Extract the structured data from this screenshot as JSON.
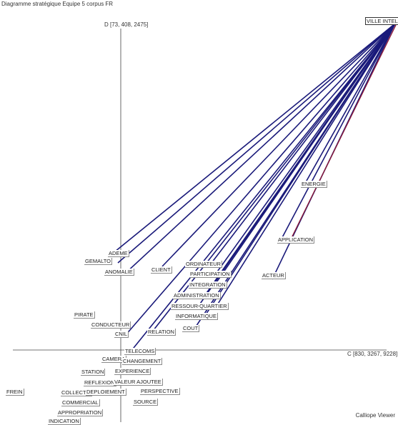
{
  "diagram": {
    "title": "Diagramme stratégique Equipe 5 corpus FR",
    "axis_d_label": "D [73, 408, 2475]",
    "axis_c_label": "C [830, 3267, 9228]",
    "footer": "Calliope Viewer",
    "colors": {
      "link": "#1a1a7a",
      "link_highlight": "#8b1a3a",
      "axis": "#444444"
    }
  },
  "terms": {
    "ville_intellige": "VILLE INTELLIGE",
    "energie": "ENERGIE",
    "application": "APPLICATION",
    "acteur": "ACTEUR",
    "ademe": "ADEME",
    "gemalto": "GEMALTO",
    "anomalie": "ANOMALIE",
    "client": "CLIENT",
    "ordinateur": "ORDINATEUR",
    "participation": "PARTICIPATION",
    "integration": "INTEGRATION",
    "administration": "ADMINISTRATION",
    "ressource": "RESSOURCE",
    "quartier": "QUARTIER",
    "informatique": "INFORMATIQUE",
    "cout": "COUT",
    "pirate": "PIRATE",
    "conducteur": "CONDUCTEUR",
    "cnil": "CNIL",
    "relation": "RELATION",
    "telecoms": "TELECOMS",
    "camera": "CAMERA",
    "changement": "CHANGEMENT",
    "station": "STATION",
    "experience": "EXPERIENCE",
    "reflexion": "REFLEXION",
    "valeur_ajoutee": "VALEUR AJOUTEE",
    "frein": "FREIN",
    "collectif": "COLLECTIF",
    "deploiement": "DEPLOIEMENT",
    "perspective": "PERSPECTIVE",
    "commercial": "COMMERCIAL",
    "source": "SOURCE",
    "appropriation": "APPROPRIATION",
    "indication": "INDICATION"
  }
}
